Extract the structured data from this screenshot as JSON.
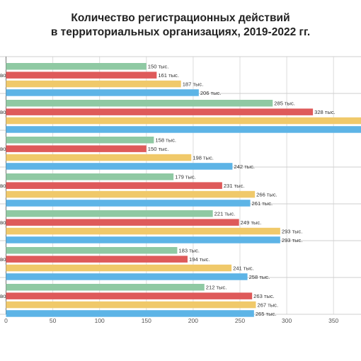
{
  "chart_data": {
    "type": "bar",
    "orientation": "horizontal",
    "title_lines": [
      "Количество регистрационных действий",
      "в территориальных организациях, 2019-2022 гг."
    ],
    "category_label_suffixes": [
      "во",
      "во",
      "во",
      "во",
      "во",
      "во",
      "во"
    ],
    "series": [
      {
        "color": "#8fc9a3",
        "values": [
          150,
          285,
          158,
          179,
          221,
          183,
          212
        ]
      },
      {
        "color": "#de5a5a",
        "values": [
          161,
          328,
          150,
          231,
          249,
          194,
          263
        ]
      },
      {
        "color": "#f0c96a",
        "values": [
          187,
          null,
          198,
          266,
          293,
          241,
          267
        ]
      },
      {
        "color": "#5db4e6",
        "values": [
          206,
          null,
          242,
          261,
          293,
          258,
          265
        ]
      }
    ],
    "value_suffix": " тыс.",
    "xlim": [
      0,
      380
    ],
    "x_ticks": [
      0,
      50,
      100,
      150,
      200,
      250,
      300,
      350
    ],
    "grid": true,
    "legend": "none"
  }
}
